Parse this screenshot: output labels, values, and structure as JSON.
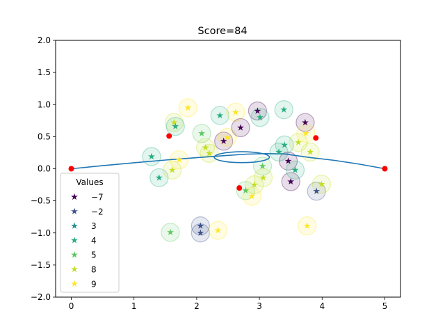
{
  "chart_data": {
    "type": "scatter",
    "title": "Score=84",
    "xlabel": "",
    "ylabel": "",
    "xlim": [
      -0.25,
      5.25
    ],
    "ylim": [
      -2.0,
      2.0
    ],
    "xticks": [
      0,
      1,
      2,
      3,
      4,
      5
    ],
    "yticks": [
      -2.0,
      -1.5,
      -1.0,
      -0.5,
      0.0,
      0.5,
      1.0,
      1.5,
      2.0
    ],
    "xtick_labels": [
      "0",
      "1",
      "2",
      "3",
      "4",
      "5"
    ],
    "ytick_labels": [
      "−2.0",
      "−1.5",
      "−1.0",
      "−0.5",
      "0.0",
      "0.5",
      "1.0",
      "1.5",
      "2.0"
    ],
    "grid": false,
    "legend": {
      "title": "Values",
      "placement": "lower-left",
      "entries": [
        {
          "label": "−7",
          "value": -7,
          "color": "#440154"
        },
        {
          "label": "−2",
          "value": -2,
          "color": "#3b528b"
        },
        {
          "label": "3",
          "value": 3,
          "color": "#21918c"
        },
        {
          "label": "4",
          "value": 4,
          "color": "#28ae80"
        },
        {
          "label": "5",
          "value": 5,
          "color": "#5ec962"
        },
        {
          "label": "8",
          "value": 8,
          "color": "#c2df23"
        },
        {
          "label": "9",
          "value": 9,
          "color": "#fde725"
        }
      ]
    },
    "curve": {
      "color": "#1f77b4",
      "points": [
        [
          0,
          0
        ],
        [
          0.5,
          0.048
        ],
        [
          1.0,
          0.093
        ],
        [
          1.5,
          0.135
        ],
        [
          2.0,
          0.172
        ],
        [
          2.5,
          0.208
        ],
        [
          2.8,
          0.228
        ],
        [
          3.1,
          0.235
        ],
        [
          3.4,
          0.231
        ],
        [
          3.8,
          0.176
        ],
        [
          4.2,
          0.13
        ],
        [
          4.6,
          0.07
        ],
        [
          5.0,
          0
        ]
      ],
      "loop": {
        "cx": 2.72,
        "cy": 0.18,
        "rx": 0.44,
        "ry": 0.085
      }
    },
    "red_points": {
      "color": "#ff0000",
      "points": [
        [
          0,
          0
        ],
        [
          1.56,
          0.51
        ],
        [
          2.68,
          -0.3
        ],
        [
          3.9,
          0.48
        ],
        [
          5.0,
          0
        ]
      ]
    },
    "stars": [
      {
        "x": 1.28,
        "y": 0.19,
        "v": 4
      },
      {
        "x": 1.4,
        "y": -0.14,
        "v": 4
      },
      {
        "x": 1.58,
        "y": -0.99,
        "v": 5
      },
      {
        "x": 1.61,
        "y": -0.02,
        "v": 8
      },
      {
        "x": 1.64,
        "y": 0.72,
        "v": 8
      },
      {
        "x": 1.66,
        "y": 0.66,
        "v": 4
      },
      {
        "x": 1.72,
        "y": 0.14,
        "v": 9
      },
      {
        "x": 1.86,
        "y": 0.95,
        "v": 9
      },
      {
        "x": 2.06,
        "y": -0.89,
        "v": -2
      },
      {
        "x": 2.06,
        "y": -1.0,
        "v": -2
      },
      {
        "x": 2.08,
        "y": 0.55,
        "v": 5
      },
      {
        "x": 2.14,
        "y": 0.33,
        "v": 8
      },
      {
        "x": 2.2,
        "y": 0.24,
        "v": 8
      },
      {
        "x": 2.34,
        "y": -0.96,
        "v": 9
      },
      {
        "x": 2.37,
        "y": 0.83,
        "v": 4
      },
      {
        "x": 2.43,
        "y": 0.43,
        "v": -7
      },
      {
        "x": 2.49,
        "y": 0.49,
        "v": 9
      },
      {
        "x": 2.62,
        "y": 0.88,
        "v": 9
      },
      {
        "x": 2.7,
        "y": 0.64,
        "v": -7
      },
      {
        "x": 2.78,
        "y": -0.34,
        "v": 5
      },
      {
        "x": 2.88,
        "y": -0.43,
        "v": 9
      },
      {
        "x": 2.92,
        "y": -0.25,
        "v": 8
      },
      {
        "x": 2.97,
        "y": 0.9,
        "v": -7
      },
      {
        "x": 3.01,
        "y": 0.8,
        "v": 4
      },
      {
        "x": 3.05,
        "y": 0.04,
        "v": 5
      },
      {
        "x": 3.06,
        "y": -0.14,
        "v": 8
      },
      {
        "x": 3.31,
        "y": 0.26,
        "v": 4
      },
      {
        "x": 3.39,
        "y": 0.92,
        "v": 4
      },
      {
        "x": 3.4,
        "y": 0.37,
        "v": 4
      },
      {
        "x": 3.46,
        "y": 0.12,
        "v": -7
      },
      {
        "x": 3.5,
        "y": -0.2,
        "v": -7
      },
      {
        "x": 3.57,
        "y": -0.02,
        "v": 4
      },
      {
        "x": 3.62,
        "y": 0.41,
        "v": 8
      },
      {
        "x": 3.73,
        "y": 0.72,
        "v": -7
      },
      {
        "x": 3.74,
        "y": 0.55,
        "v": 9
      },
      {
        "x": 3.76,
        "y": -0.89,
        "v": 9
      },
      {
        "x": 3.81,
        "y": 0.26,
        "v": 8
      },
      {
        "x": 3.91,
        "y": -0.35,
        "v": -2
      },
      {
        "x": 3.99,
        "y": -0.24,
        "v": 8
      }
    ]
  }
}
